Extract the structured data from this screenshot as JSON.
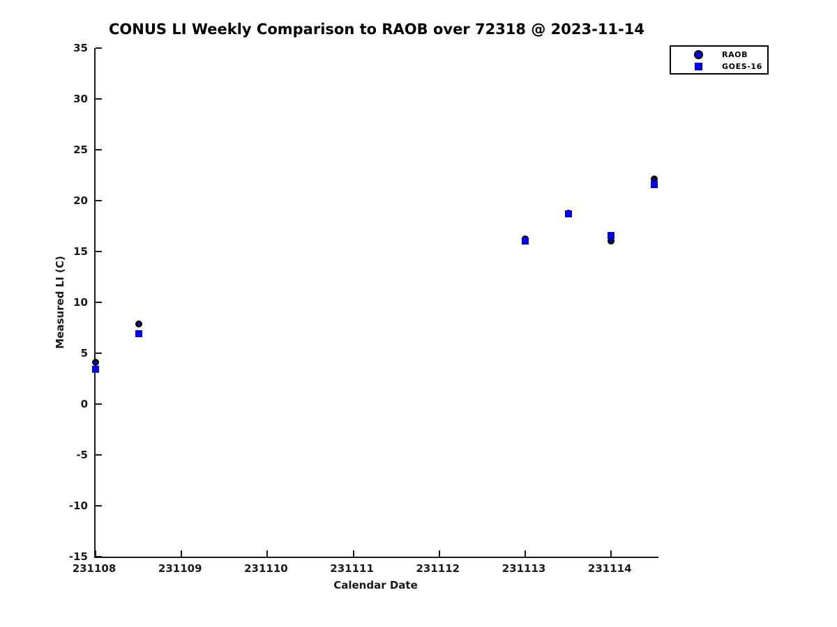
{
  "title": "CONUS LI Weekly Comparison to RAOB over 72318 @ 2023-11-14",
  "colors": {
    "marker_blue": "#0000ee",
    "marker_edge_black": "#000000",
    "axis_color": "#1a1a1a",
    "background": "#ffffff"
  },
  "chart_data": {
    "type": "scatter",
    "title": "CONUS LI Weekly Comparison to RAOB over 72318 @ 2023-11-14",
    "xlabel": "Calendar Date",
    "ylabel": "Measured LI (C)",
    "xlim": [
      231108,
      231114.55
    ],
    "ylim": [
      -15,
      35
    ],
    "xticks": [
      231108,
      231109,
      231110,
      231111,
      231112,
      231113,
      231114
    ],
    "yticks": [
      35,
      30,
      25,
      20,
      15,
      10,
      5,
      0,
      -5,
      -10,
      -15
    ],
    "grid": false,
    "legend_position": "top-right",
    "series": [
      {
        "name": "RAOB",
        "marker": "circle",
        "face_color": "#0000ee",
        "edge_color": "#000000",
        "points": [
          [
            231108.0,
            4.1
          ],
          [
            231108.5,
            7.9
          ],
          [
            231113.0,
            16.2
          ],
          [
            231113.5,
            18.8
          ],
          [
            231114.0,
            16.0
          ],
          [
            231114.5,
            22.1
          ]
        ]
      },
      {
        "name": "GOES-16",
        "marker": "square",
        "face_color": "#0000ee",
        "edge_color": "#0000ee",
        "points": [
          [
            231108.0,
            3.4
          ],
          [
            231108.5,
            6.9
          ],
          [
            231113.0,
            16.0
          ],
          [
            231113.5,
            18.7
          ],
          [
            231114.0,
            16.6
          ],
          [
            231114.5,
            21.6
          ]
        ]
      }
    ]
  }
}
